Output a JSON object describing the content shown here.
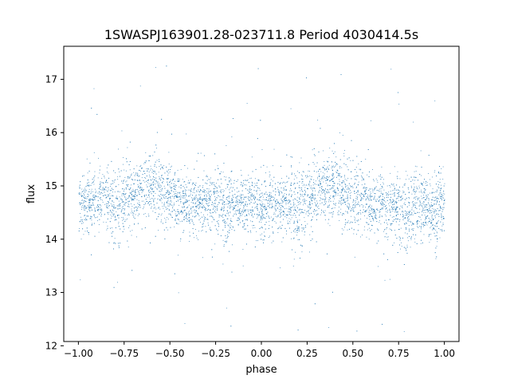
{
  "chart_data": {
    "type": "scatter",
    "title": "1SWASPJ163901.28-023711.8 Period 4030414.5s",
    "xlabel": "phase",
    "ylabel": "flux",
    "xlim": [
      -1.08,
      1.08
    ],
    "ylim": [
      12.08,
      17.62
    ],
    "x_ticks": [
      -1.0,
      -0.75,
      -0.5,
      -0.25,
      0.0,
      0.25,
      0.5,
      0.75,
      1.0
    ],
    "x_tick_labels": [
      "−1.00",
      "−0.75",
      "−0.50",
      "−0.25",
      "0.00",
      "0.25",
      "0.50",
      "0.75",
      "1.00"
    ],
    "y_ticks": [
      12,
      13,
      14,
      15,
      16,
      17
    ],
    "y_tick_labels": [
      "12",
      "13",
      "14",
      "15",
      "16",
      "17"
    ],
    "grid": false,
    "legend": "none",
    "marker_color": "#1f77b4",
    "series": [
      {
        "x": [
          -1.0,
          -0.95,
          -0.9,
          -0.85,
          -0.8,
          -0.75,
          -0.7,
          -0.65,
          -0.6,
          -0.55,
          -0.5,
          -0.45,
          -0.4,
          -0.35,
          -0.3,
          -0.25,
          -0.2,
          -0.15,
          -0.1,
          -0.05,
          0.0,
          0.05,
          0.1,
          0.15,
          0.2,
          0.25,
          0.3,
          0.35,
          0.4,
          0.45,
          0.5,
          0.55,
          0.6,
          0.65,
          0.7,
          0.75,
          0.8,
          0.85,
          0.9,
          0.95,
          1.0
        ],
        "y_median": [
          14.7,
          14.7,
          14.7,
          14.8,
          14.5,
          14.8,
          14.8,
          15.0,
          15.0,
          14.9,
          14.8,
          14.7,
          14.6,
          14.7,
          14.7,
          14.7,
          14.6,
          14.6,
          14.6,
          14.7,
          14.6,
          14.7,
          14.6,
          14.7,
          14.5,
          14.8,
          14.9,
          15.0,
          15.0,
          14.9,
          14.8,
          14.8,
          14.6,
          14.7,
          14.6,
          14.6,
          14.6,
          14.6,
          14.6,
          14.5,
          14.7
        ],
        "y_spread": [
          0.5,
          0.45,
          0.45,
          0.5,
          0.7,
          0.6,
          0.5,
          0.55,
          0.6,
          0.55,
          0.55,
          0.5,
          0.5,
          0.5,
          0.5,
          0.55,
          0.65,
          0.5,
          0.5,
          0.5,
          0.6,
          0.45,
          0.5,
          0.5,
          0.7,
          0.6,
          0.5,
          0.55,
          0.6,
          0.55,
          0.55,
          0.5,
          0.5,
          0.5,
          0.55,
          0.6,
          0.65,
          0.55,
          0.5,
          0.7,
          0.5
        ]
      }
    ]
  }
}
